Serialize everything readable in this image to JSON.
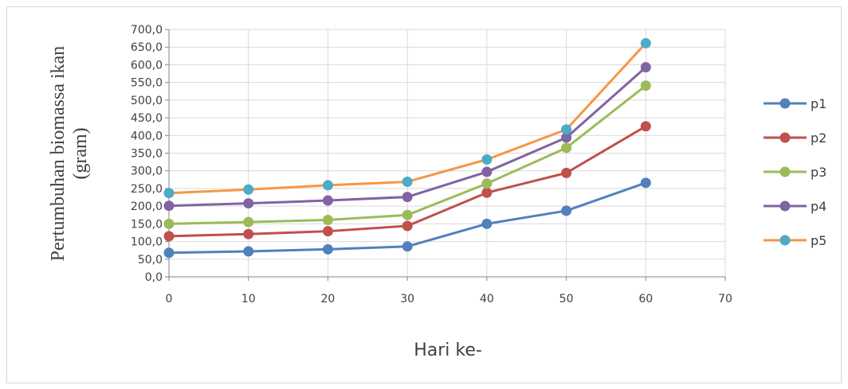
{
  "chart_data": {
    "type": "line",
    "x": [
      0,
      10,
      20,
      30,
      40,
      50,
      60
    ],
    "series": [
      {
        "name": "p1",
        "color": "#4F81BD",
        "values": [
          68,
          72,
          78,
          86,
          150,
          187,
          266
        ]
      },
      {
        "name": "p2",
        "color": "#C0504D",
        "values": [
          115,
          121,
          129,
          144,
          238,
          294,
          426
        ]
      },
      {
        "name": "p3",
        "color": "#9BBB59",
        "values": [
          150,
          155,
          161,
          175,
          264,
          365,
          541
        ]
      },
      {
        "name": "p4",
        "color": "#8064A2",
        "values": [
          201,
          208,
          216,
          226,
          297,
          394,
          593
        ]
      },
      {
        "name": "p5",
        "color": "#4BACC6",
        "line_color": "#F79646",
        "values": [
          237,
          247,
          259,
          269,
          332,
          417,
          661
        ]
      }
    ],
    "xlabel": "Hari ke-",
    "ylabel_lines": [
      "Pertumbuhan  biomassa ikan",
      "(gram)"
    ],
    "xlim": [
      0,
      70
    ],
    "ylim": [
      0,
      700
    ],
    "x_ticks": [
      0,
      10,
      20,
      30,
      40,
      50,
      60,
      70
    ],
    "x_tick_labels": [
      "0",
      "10",
      "20",
      "30",
      "40",
      "50",
      "60",
      "70"
    ],
    "y_ticks": [
      0,
      50,
      100,
      150,
      200,
      250,
      300,
      350,
      400,
      450,
      500,
      550,
      600,
      650,
      700
    ],
    "y_tick_labels": [
      "0,0",
      "50,0",
      "100,0",
      "150,0",
      "200,0",
      "250,0",
      "300,0",
      "350,0",
      "400,0",
      "450,0",
      "500,0",
      "550,0",
      "600,0",
      "650,0",
      "700,0"
    ],
    "grid": true,
    "legend_position": "right",
    "gridline_color": "#d9d9d9",
    "axis_color": "#868686"
  }
}
